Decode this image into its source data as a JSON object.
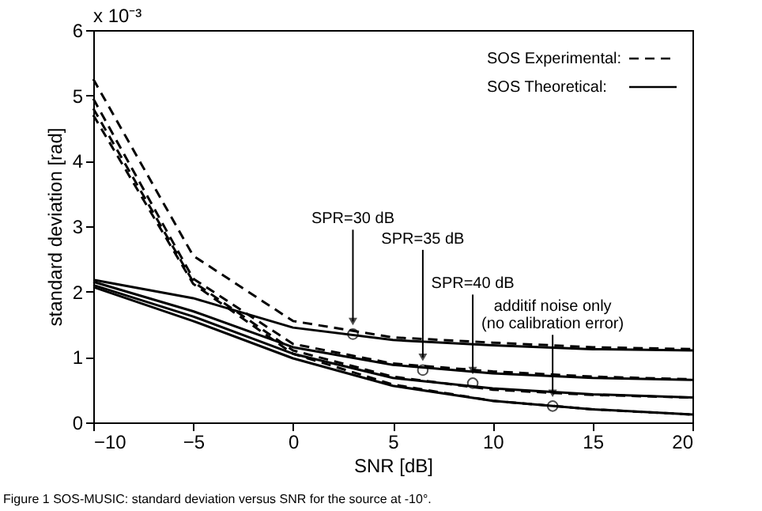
{
  "chart_data": {
    "type": "line",
    "xlabel": "SNR [dB]",
    "ylabel": "standard deviation [rad]",
    "x": [
      -10,
      -5,
      0,
      5,
      10,
      15,
      20
    ],
    "xlim": [
      -10,
      20
    ],
    "xticks": [
      -10,
      -5,
      0,
      5,
      10,
      15,
      20
    ],
    "ylim": [
      0,
      6
    ],
    "yticks": [
      0,
      1,
      2,
      3,
      4,
      5,
      6
    ],
    "grid": false,
    "legend": "top right",
    "marker": "none",
    "series": [
      {
        "name": "SOS Experimental:",
        "color": "#000000",
        "line_style": "dashed",
        "values": [
          5.25,
          2.55,
          1.55,
          1.3,
          1.22,
          1.15,
          1.12
        ]
      },
      {
        "color": "#000000",
        "line_style": "dashed",
        "values": [
          4.95,
          2.2,
          1.2,
          0.9,
          0.78,
          0.7,
          0.66
        ]
      },
      {
        "color": "#000000",
        "line_style": "dashed",
        "values": [
          4.8,
          2.15,
          1.1,
          0.7,
          0.5,
          0.42,
          0.38
        ]
      },
      {
        "color": "#000000",
        "line_style": "dashed",
        "values": [
          4.7,
          2.12,
          1.05,
          0.58,
          0.33,
          0.2,
          0.12
        ]
      },
      {
        "name": "SOS Theoretical:",
        "color": "#000000",
        "line_style": "solid",
        "values": [
          2.18,
          1.9,
          1.45,
          1.26,
          1.18,
          1.12,
          1.1
        ]
      },
      {
        "color": "#000000",
        "line_style": "solid",
        "values": [
          2.15,
          1.7,
          1.15,
          0.88,
          0.75,
          0.68,
          0.65
        ]
      },
      {
        "color": "#000000",
        "line_style": "solid",
        "values": [
          2.1,
          1.62,
          1.05,
          0.68,
          0.52,
          0.43,
          0.38
        ]
      },
      {
        "color": "#000000",
        "line_style": "solid",
        "values": [
          2.07,
          1.55,
          0.98,
          0.56,
          0.33,
          0.2,
          0.12
        ]
      }
    ],
    "annotations": [
      "x 10⁻³",
      "Figure 1 SOS-MUSIC: standard deviation versus SNR for the source at -10°.",
      {
        "text": "SPR=30 dB",
        "x": 3,
        "y": 1.35
      },
      {
        "text": "SPR=35 dB",
        "x": 6.5,
        "y": 0.8
      },
      {
        "text": "SPR=40 dB",
        "x": 9,
        "y": 0.6
      },
      {
        "text": "additif noise only\n(no calibration error)",
        "x": 13,
        "y": 0.25
      }
    ]
  }
}
